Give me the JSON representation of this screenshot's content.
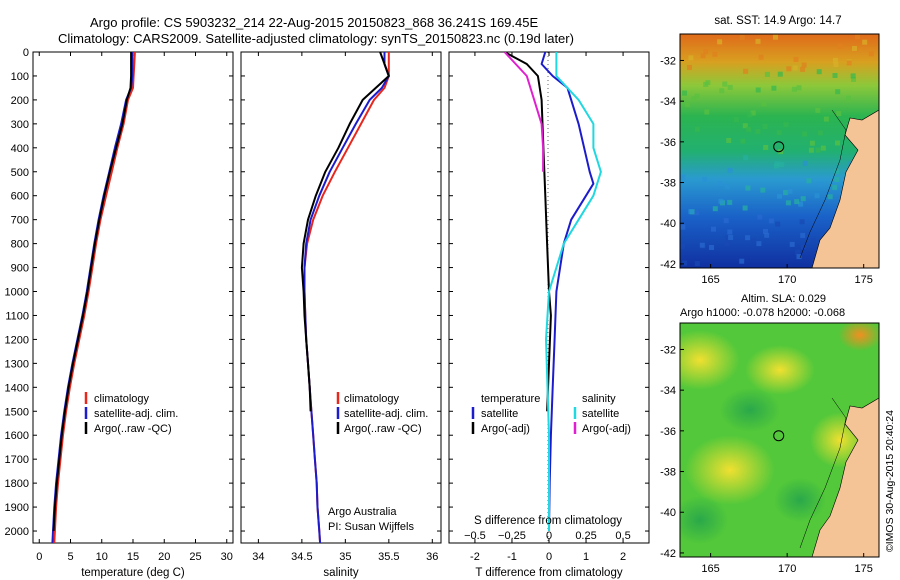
{
  "title_line1": "Argo profile: CS 5903232_214 22-Aug-2015 20150823_868 36.241S 169.45E",
  "title_line2": "Climatology: CARS2009. Satellite-adjusted climatology: synTS_20150823.nc (0.19d later)",
  "credit_line1": "Argo Australia",
  "credit_line2": "PI: Susan Wijffels",
  "watermark": "©IMOS 30-Aug-2015 20:40:24",
  "colors": {
    "climatology": "#e8281e",
    "satellite": "#1c1ccc",
    "argo": "#000000",
    "sat_salinity": "#20d8e0",
    "argo_salinity": "#e020d0"
  },
  "chart_data": [
    {
      "type": "line",
      "name": "temperature-panel",
      "xlabel": "temperature (deg C)",
      "ylabel": "",
      "xlim": [
        -1,
        31
      ],
      "ylim": [
        2050,
        0
      ],
      "xticks": [
        0,
        5,
        10,
        15,
        20,
        25,
        30
      ],
      "yticks": [
        0,
        100,
        200,
        300,
        400,
        500,
        600,
        700,
        800,
        900,
        1000,
        1100,
        1200,
        1300,
        1400,
        1500,
        1600,
        1700,
        1800,
        1900,
        2000
      ],
      "legend": [
        "climatology",
        "satellite-adj. clim.",
        "Argo(..raw -QC)"
      ],
      "legend_position": "lower-center",
      "series": [
        {
          "name": "climatology",
          "color": "#e8281e",
          "points": [
            [
              15.3,
              0
            ],
            [
              15.2,
              50
            ],
            [
              15.1,
              100
            ],
            [
              15.0,
              150
            ],
            [
              14.2,
              200
            ],
            [
              13.5,
              300
            ],
            [
              12.5,
              400
            ],
            [
              11.6,
              500
            ],
            [
              10.7,
              600
            ],
            [
              9.8,
              700
            ],
            [
              9.1,
              800
            ],
            [
              8.5,
              900
            ],
            [
              7.9,
              1000
            ],
            [
              7.2,
              1100
            ],
            [
              6.4,
              1200
            ],
            [
              5.6,
              1300
            ],
            [
              4.9,
              1400
            ],
            [
              4.3,
              1500
            ],
            [
              3.8,
              1600
            ],
            [
              3.4,
              1700
            ],
            [
              3.0,
              1800
            ],
            [
              2.7,
              1900
            ],
            [
              2.5,
              2000
            ],
            [
              2.4,
              2050
            ]
          ]
        },
        {
          "name": "satellite-adj. clim.",
          "color": "#1c1ccc",
          "points": [
            [
              14.9,
              0
            ],
            [
              14.9,
              50
            ],
            [
              14.9,
              100
            ],
            [
              14.7,
              150
            ],
            [
              13.9,
              200
            ],
            [
              13.1,
              300
            ],
            [
              12.1,
              400
            ],
            [
              11.2,
              500
            ],
            [
              10.3,
              600
            ],
            [
              9.5,
              700
            ],
            [
              8.8,
              800
            ],
            [
              8.2,
              900
            ],
            [
              7.6,
              1000
            ],
            [
              6.9,
              1100
            ],
            [
              6.1,
              1200
            ],
            [
              5.3,
              1300
            ],
            [
              4.6,
              1400
            ],
            [
              4.0,
              1500
            ],
            [
              3.5,
              1600
            ],
            [
              3.1,
              1700
            ],
            [
              2.7,
              1800
            ],
            [
              2.4,
              1900
            ],
            [
              2.2,
              2000
            ],
            [
              2.1,
              2050
            ]
          ]
        },
        {
          "name": "Argo(..raw -QC)",
          "color": "#000000",
          "points": [
            [
              14.7,
              0
            ],
            [
              14.7,
              50
            ],
            [
              14.7,
              100
            ],
            [
              14.6,
              150
            ],
            [
              14.0,
              200
            ],
            [
              13.3,
              300
            ],
            [
              12.3,
              400
            ],
            [
              11.3,
              500
            ],
            [
              10.4,
              600
            ],
            [
              9.6,
              700
            ],
            [
              8.9,
              800
            ],
            [
              8.3,
              900
            ],
            [
              7.7,
              1000
            ],
            [
              7.0,
              1100
            ],
            [
              6.2,
              1200
            ],
            [
              5.4,
              1300
            ],
            [
              4.7,
              1400
            ],
            [
              4.1,
              1500
            ],
            [
              3.6,
              1600
            ],
            [
              3.2,
              1700
            ],
            [
              2.8,
              1800
            ],
            [
              2.5,
              1900
            ],
            [
              2.3,
              2000
            ]
          ]
        }
      ]
    },
    {
      "type": "line",
      "name": "salinity-panel",
      "xlabel": "salinity",
      "ylabel": "",
      "xlim": [
        33.8,
        36.1
      ],
      "ylim": [
        2050,
        0
      ],
      "xticks": [
        34,
        34.5,
        35,
        35.5,
        36
      ],
      "legend": [
        "climatology",
        "satellite-adj. clim.",
        "Argo(..raw -QC)"
      ],
      "legend_position": "lower-center",
      "series": [
        {
          "name": "climatology",
          "color": "#e8281e",
          "points": [
            [
              35.5,
              0
            ],
            [
              35.5,
              50
            ],
            [
              35.5,
              100
            ],
            [
              35.45,
              150
            ],
            [
              35.33,
              200
            ],
            [
              35.18,
              300
            ],
            [
              35.03,
              400
            ],
            [
              34.88,
              500
            ],
            [
              34.74,
              600
            ],
            [
              34.63,
              700
            ],
            [
              34.56,
              800
            ],
            [
              34.53,
              900
            ],
            [
              34.53,
              1000
            ],
            [
              34.54,
              1100
            ],
            [
              34.55,
              1200
            ],
            [
              34.57,
              1300
            ],
            [
              34.59,
              1400
            ],
            [
              34.61,
              1500
            ],
            [
              34.63,
              1600
            ],
            [
              34.65,
              1700
            ],
            [
              34.67,
              1800
            ],
            [
              34.68,
              1900
            ],
            [
              34.7,
              2000
            ],
            [
              34.71,
              2050
            ]
          ]
        },
        {
          "name": "satellite-adj. clim.",
          "color": "#1c1ccc",
          "points": [
            [
              35.45,
              0
            ],
            [
              35.45,
              50
            ],
            [
              35.5,
              100
            ],
            [
              35.42,
              150
            ],
            [
              35.28,
              200
            ],
            [
              35.12,
              300
            ],
            [
              34.97,
              400
            ],
            [
              34.82,
              500
            ],
            [
              34.7,
              600
            ],
            [
              34.6,
              700
            ],
            [
              34.55,
              800
            ],
            [
              34.53,
              900
            ],
            [
              34.53,
              1000
            ],
            [
              34.54,
              1100
            ],
            [
              34.55,
              1200
            ],
            [
              34.57,
              1300
            ],
            [
              34.59,
              1400
            ],
            [
              34.61,
              1500
            ],
            [
              34.63,
              1600
            ],
            [
              34.65,
              1700
            ],
            [
              34.67,
              1800
            ],
            [
              34.68,
              1900
            ],
            [
              34.7,
              2000
            ],
            [
              34.71,
              2050
            ]
          ]
        },
        {
          "name": "Argo(..raw -QC)",
          "color": "#000000",
          "points": [
            [
              35.4,
              0
            ],
            [
              35.45,
              50
            ],
            [
              35.5,
              100
            ],
            [
              35.35,
              150
            ],
            [
              35.2,
              200
            ],
            [
              35.05,
              300
            ],
            [
              34.92,
              400
            ],
            [
              34.77,
              500
            ],
            [
              34.66,
              600
            ],
            [
              34.57,
              700
            ],
            [
              34.52,
              800
            ],
            [
              34.5,
              900
            ],
            [
              34.52,
              1000
            ],
            [
              34.53,
              1100
            ],
            [
              34.55,
              1200
            ],
            [
              34.57,
              1300
            ],
            [
              34.59,
              1400
            ],
            [
              34.6,
              1500
            ]
          ]
        }
      ]
    },
    {
      "type": "line",
      "name": "difference-panel",
      "xlabel": "T difference from climatology",
      "x2label": "S difference from climatology",
      "ylabel": "",
      "xlim": [
        -2.7,
        2.7
      ],
      "ylim": [
        2050,
        0
      ],
      "xticks": [
        -2,
        -1,
        0,
        1,
        2
      ],
      "x2ticks": [
        -0.5,
        -0.25,
        0,
        0.25,
        0.5
      ],
      "x2tick_labels": [
        "−0.5",
        "−0.25",
        "0",
        "0.25",
        "0.5"
      ],
      "legend_temperature": [
        "temperature",
        "satellite",
        "Argo(-adj)"
      ],
      "legend_salinity": [
        "salinity",
        "satellite",
        "Argo(-adj)"
      ],
      "legend_position": "lower-center",
      "series": [
        {
          "name": "temperature satellite",
          "color": "#1c1ccc",
          "points": [
            [
              -0.1,
              0
            ],
            [
              -0.2,
              50
            ],
            [
              0.1,
              100
            ],
            [
              0.5,
              150
            ],
            [
              0.8,
              300
            ],
            [
              1.1,
              500
            ],
            [
              1.2,
              550
            ],
            [
              1.0,
              600
            ],
            [
              0.6,
              700
            ],
            [
              0.4,
              800
            ],
            [
              0.3,
              900
            ],
            [
              0.2,
              1000
            ],
            [
              0.15,
              1200
            ],
            [
              0.1,
              1400
            ],
            [
              0.05,
              1600
            ],
            [
              0.02,
              1800
            ],
            [
              0.0,
              2000
            ]
          ]
        },
        {
          "name": "temperature Argo(-adj)",
          "color": "#000000",
          "points": [
            [
              -1.2,
              0
            ],
            [
              -0.6,
              50
            ],
            [
              -0.3,
              100
            ],
            [
              -0.2,
              200
            ],
            [
              -0.15,
              400
            ],
            [
              -0.1,
              600
            ],
            [
              -0.05,
              800
            ],
            [
              0.0,
              1000
            ],
            [
              0.05,
              1100
            ],
            [
              0.0,
              1300
            ],
            [
              -0.05,
              1500
            ]
          ]
        },
        {
          "name": "salinity satellite",
          "color": "#20d8e0",
          "points": [
            [
              0.05,
              0
            ],
            [
              0.05,
              100
            ],
            [
              0.2,
              200
            ],
            [
              0.3,
              300
            ],
            [
              0.3,
              400
            ],
            [
              0.35,
              500
            ],
            [
              0.3,
              600
            ],
            [
              0.2,
              700
            ],
            [
              0.1,
              800
            ],
            [
              0.05,
              900
            ],
            [
              0.0,
              1000
            ],
            [
              -0.02,
              1200
            ],
            [
              -0.01,
              1400
            ],
            [
              0.0,
              1600
            ],
            [
              0.0,
              2000
            ]
          ]
        },
        {
          "name": "salinity Argo(-adj)",
          "color": "#e020d0",
          "points": [
            [
              -0.3,
              0
            ],
            [
              -0.15,
              100
            ],
            [
              -0.1,
              200
            ],
            [
              -0.05,
              300
            ],
            [
              -0.04,
              400
            ],
            [
              -0.04,
              500
            ]
          ]
        }
      ]
    },
    {
      "type": "heatmap",
      "name": "sst-map",
      "title": "sat. SST: 14.9  Argo: 14.7",
      "xlim": [
        163,
        176
      ],
      "ylim": [
        -42.2,
        -30.7
      ],
      "xticks": [
        165,
        170,
        175
      ],
      "yticks": [
        -32,
        -34,
        -36,
        -38,
        -40,
        -42
      ],
      "marker": {
        "lon": 169.45,
        "lat": -36.241
      }
    },
    {
      "type": "heatmap",
      "name": "sla-map",
      "title": "Altim. SLA: 0.029",
      "subtitle": "Argo h1000: -0.078 h2000: -0.068",
      "xlim": [
        163,
        176
      ],
      "ylim": [
        -42.2,
        -30.7
      ],
      "xticks": [
        165,
        170,
        175
      ],
      "yticks": [
        -32,
        -34,
        -36,
        -38,
        -40,
        -42
      ],
      "marker": {
        "lon": 169.45,
        "lat": -36.241
      }
    }
  ]
}
